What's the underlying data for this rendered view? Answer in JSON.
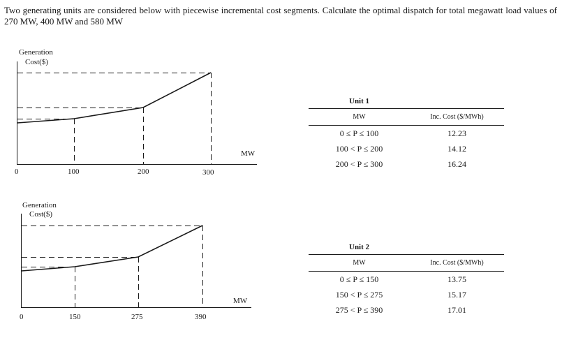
{
  "problem_text": "Two generating units are considered below with piecewise incremental cost segments. Calculate the optimal dispatch for total megawatt load values of 270 MW, 400 MW and 580 MW",
  "charts": [
    {
      "ylabel_line1": "Generation",
      "ylabel_line2": "Cost($)",
      "xlabel": "MW",
      "origin_label": "0",
      "breakpoints": [
        100,
        200,
        300
      ],
      "tick_labels": [
        "100",
        "200",
        "300"
      ]
    },
    {
      "ylabel_line1": "Generation",
      "ylabel_line2": "Cost($)",
      "xlabel": "MW",
      "origin_label": "0",
      "breakpoints": [
        150,
        275,
        390
      ],
      "tick_labels": [
        "150",
        "275",
        "390"
      ]
    }
  ],
  "tables": [
    {
      "title": "Unit 1",
      "col_mw": "MW",
      "col_cost": "Inc. Cost ($/MWh)",
      "rows": [
        {
          "range": "0 ≤ P ≤ 100",
          "cost": "12.23"
        },
        {
          "range": "100 < P ≤ 200",
          "cost": "14.12"
        },
        {
          "range": "200 < P ≤ 300",
          "cost": "16.24"
        }
      ]
    },
    {
      "title": "Unit 2",
      "col_mw": "MW",
      "col_cost": "Inc. Cost ($/MWh)",
      "rows": [
        {
          "range": "0 ≤ P ≤ 150",
          "cost": "13.75"
        },
        {
          "range": "150 < P ≤ 275",
          "cost": "15.17"
        },
        {
          "range": "275 < P ≤ 390",
          "cost": "17.01"
        }
      ]
    }
  ]
}
